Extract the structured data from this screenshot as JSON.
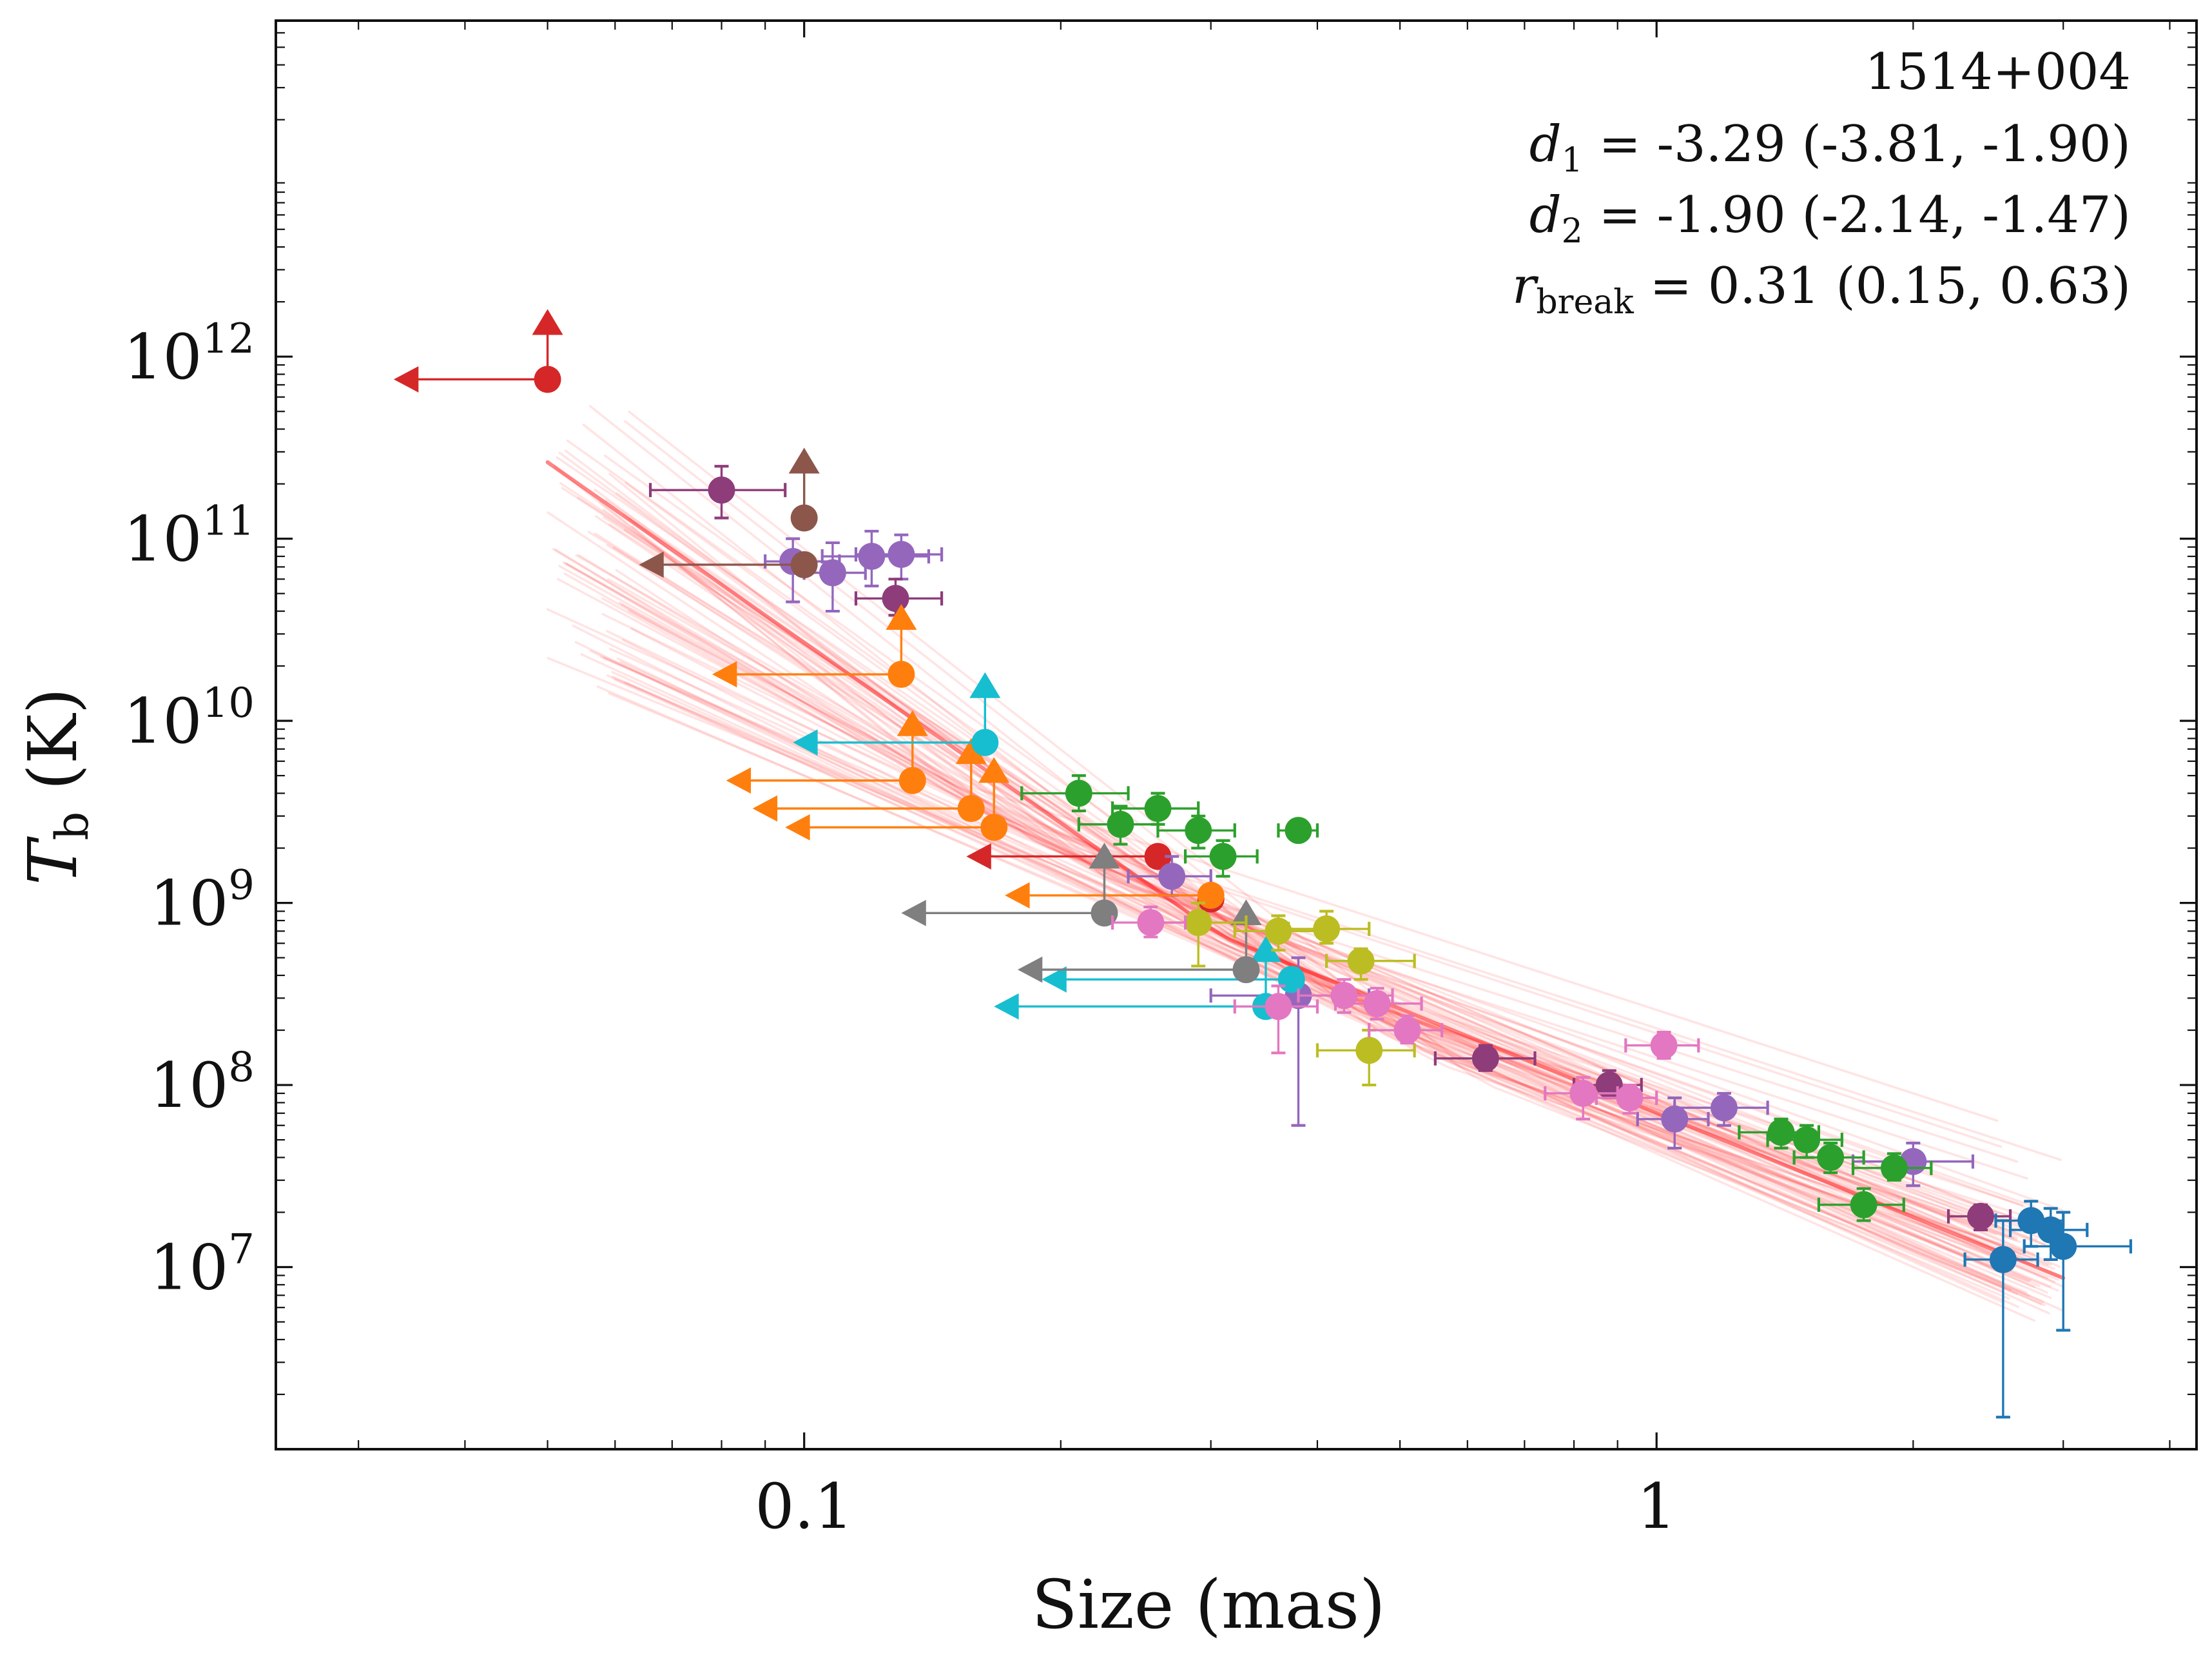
{
  "chart_data": {
    "type": "scatter",
    "title": "1514+004",
    "xlabel": "Size (mas)",
    "ylabel": "T_b (K)",
    "ylabel_main": "T",
    "ylabel_sub": "b",
    "ylabel_unit": " (K)",
    "xscale": "log",
    "yscale": "log",
    "xlim": [
      0.024,
      4.3
    ],
    "ylim": [
      1000000,
      70000000000000
    ],
    "x_ticks": [
      {
        "value": 0.1,
        "label": "0.1"
      },
      {
        "value": 1,
        "label": "1"
      }
    ],
    "y_ticks": [
      {
        "value": 10000000,
        "base": "10",
        "exp": "7"
      },
      {
        "value": 100000000,
        "base": "10",
        "exp": "8"
      },
      {
        "value": 1000000000,
        "base": "10",
        "exp": "9"
      },
      {
        "value": 10000000000,
        "base": "10",
        "exp": "10"
      },
      {
        "value": 100000000000,
        "base": "10",
        "exp": "11"
      },
      {
        "value": 1000000000000,
        "base": "10",
        "exp": "12"
      }
    ],
    "annotations": {
      "source": "1514+004",
      "d1_label": "d",
      "d1_sub": "1",
      "d1_value": " = -3.29 (-3.81, -1.90)",
      "d2_label": "d",
      "d2_sub": "2",
      "d2_value": " = -1.90 (-2.14, -1.47)",
      "rb_label": "r",
      "rb_sub": "break",
      "rb_value": " = 0.31 (0.15, 0.63)"
    },
    "fit": {
      "model": "broken power law",
      "d1": -3.29,
      "d1_interval": [
        -3.81,
        -1.9
      ],
      "d2": -1.9,
      "d2_interval": [
        -2.14,
        -1.47
      ],
      "r_break": 0.31,
      "r_break_interval": [
        0.15,
        0.63
      ],
      "x_range": [
        0.05,
        3.0
      ],
      "y_at_break": 650000000,
      "color": "#ff2020"
    },
    "series": [
      {
        "name": "red",
        "color": "#d62728",
        "points": [
          {
            "x": 0.05,
            "y": 750000000000,
            "upper": true,
            "lower": true,
            "xl": 0.033
          },
          {
            "x": 0.26,
            "y": 1800000000,
            "upper": true,
            "xl": 0.155
          },
          {
            "x": 0.3,
            "y": 1050000000
          }
        ]
      },
      {
        "name": "purple",
        "color": "#9467bd",
        "points": [
          {
            "x": 0.097,
            "y": 75000000000,
            "xe": [
              0.09,
              0.11
            ],
            "ye": [
              45000000000,
              100000000000
            ]
          },
          {
            "x": 0.108,
            "y": 65000000000,
            "xe": [
              0.1,
              0.118
            ],
            "ye": [
              40000000000,
              95000000000
            ]
          },
          {
            "x": 0.12,
            "y": 80000000000,
            "xe": [
              0.105,
              0.14
            ],
            "ye": [
              55000000000,
              110000000000
            ]
          },
          {
            "x": 0.13,
            "y": 82000000000,
            "xe": [
              0.115,
              0.145
            ],
            "ye": [
              60000000000,
              105000000000
            ]
          },
          {
            "x": 0.27,
            "y": 1400000000,
            "xe": [
              0.24,
              0.3
            ],
            "ye": [
              1100000000,
              1800000000
            ]
          },
          {
            "x": 0.38,
            "y": 310000000,
            "xe": [
              0.3,
              0.46
            ],
            "ye": [
              60000000,
              500000000
            ]
          },
          {
            "x": 1.05,
            "y": 65000000,
            "xe": [
              0.95,
              1.15
            ],
            "ye": [
              45000000,
              85000000
            ]
          },
          {
            "x": 1.2,
            "y": 75000000,
            "xe": [
              1.05,
              1.35
            ],
            "ye": [
              60000000,
              90000000
            ]
          },
          {
            "x": 2.0,
            "y": 38000000,
            "xe": [
              1.7,
              2.35
            ],
            "ye": [
              28000000,
              48000000
            ]
          }
        ]
      },
      {
        "name": "plum",
        "color": "#8e3c7a",
        "points": [
          {
            "x": 0.08,
            "y": 185000000000,
            "xe": [
              0.066,
              0.095
            ],
            "ye": [
              130000000000,
              250000000000
            ]
          },
          {
            "x": 0.128,
            "y": 47000000000,
            "xe": [
              0.115,
              0.145
            ],
            "ye": [
              38000000000,
              60000000000
            ]
          },
          {
            "x": 0.63,
            "y": 140000000,
            "xe": [
              0.55,
              0.72
            ],
            "ye": [
              120000000,
              165000000
            ]
          },
          {
            "x": 0.88,
            "y": 100000000,
            "xe": [
              0.8,
              0.96
            ],
            "ye": [
              85000000,
              120000000
            ]
          },
          {
            "x": 2.4,
            "y": 19000000,
            "xe": [
              2.2,
              2.6
            ],
            "ye": [
              16000000,
              22000000
            ]
          }
        ]
      },
      {
        "name": "brown",
        "color": "#8c564b",
        "points": [
          {
            "x": 0.1,
            "y": 72000000000,
            "upper": true,
            "xl": 0.064
          },
          {
            "x": 0.1,
            "y": 130000000000,
            "lower": true
          }
        ]
      },
      {
        "name": "orange",
        "color": "#ff7f0e",
        "points": [
          {
            "x": 0.13,
            "y": 18000000000,
            "upper": true,
            "lower": true,
            "xl": 0.078
          },
          {
            "x": 0.134,
            "y": 4700000000,
            "upper": true,
            "lower": true,
            "xl": 0.081
          },
          {
            "x": 0.157,
            "y": 3300000000,
            "upper": true,
            "lower": true,
            "xl": 0.087
          },
          {
            "x": 0.167,
            "y": 2600000000,
            "upper": true,
            "lower": true,
            "xl": 0.095
          },
          {
            "x": 0.3,
            "y": 1100000000,
            "upper": true,
            "xl": 0.172
          }
        ]
      },
      {
        "name": "cyan",
        "color": "#17becf",
        "points": [
          {
            "x": 0.163,
            "y": 7600000000,
            "upper": true,
            "lower": true,
            "xl": 0.097
          },
          {
            "x": 0.348,
            "y": 270000000,
            "upper": true,
            "lower": true,
            "xl": 0.167
          },
          {
            "x": 0.373,
            "y": 380000000,
            "upper": true,
            "xl": 0.19
          }
        ]
      },
      {
        "name": "gray",
        "color": "#7f7f7f",
        "points": [
          {
            "x": 0.225,
            "y": 880000000,
            "upper": true,
            "lower": true,
            "xl": 0.13
          },
          {
            "x": 0.33,
            "y": 430000000,
            "upper": true,
            "lower": true,
            "xl": 0.178
          }
        ]
      },
      {
        "name": "green",
        "color": "#2ca02c",
        "points": [
          {
            "x": 0.21,
            "y": 4000000000,
            "xe": [
              0.18,
              0.24
            ],
            "ye": [
              3200000000,
              5000000000
            ]
          },
          {
            "x": 0.235,
            "y": 2700000000,
            "xe": [
              0.21,
              0.26
            ],
            "ye": [
              2100000000,
              3400000000
            ]
          },
          {
            "x": 0.26,
            "y": 3300000000,
            "xe": [
              0.23,
              0.29
            ],
            "ye": [
              2700000000,
              4000000000
            ]
          },
          {
            "x": 0.29,
            "y": 2500000000,
            "xe": [
              0.26,
              0.32
            ],
            "ye": [
              2000000000,
              3000000000
            ]
          },
          {
            "x": 0.31,
            "y": 1800000000,
            "xe": [
              0.28,
              0.34
            ],
            "ye": [
              1400000000,
              2200000000
            ]
          },
          {
            "x": 0.38,
            "y": 2500000000,
            "xe": [
              0.36,
              0.4
            ],
            "ye": [
              2300000000,
              2700000000
            ]
          },
          {
            "x": 1.4,
            "y": 55000000,
            "xe": [
              1.25,
              1.55
            ],
            "ye": [
              45000000,
              65000000
            ]
          },
          {
            "x": 1.5,
            "y": 50000000,
            "xe": [
              1.35,
              1.65
            ],
            "ye": [
              40000000,
              60000000
            ]
          },
          {
            "x": 1.6,
            "y": 40000000,
            "xe": [
              1.45,
              1.75
            ],
            "ye": [
              33000000,
              48000000
            ]
          },
          {
            "x": 1.75,
            "y": 22000000,
            "xe": [
              1.55,
              1.95
            ],
            "ye": [
              18000000,
              27000000
            ]
          },
          {
            "x": 1.9,
            "y": 35000000,
            "xe": [
              1.7,
              2.1
            ],
            "ye": [
              30000000,
              42000000
            ]
          }
        ]
      },
      {
        "name": "olive",
        "color": "#bcbd22",
        "points": [
          {
            "x": 0.29,
            "y": 780000000,
            "xe": [
              0.26,
              0.33
            ],
            "ye": [
              450000000,
              1000000000
            ]
          },
          {
            "x": 0.36,
            "y": 700000000,
            "xe": [
              0.32,
              0.4
            ],
            "ye": [
              550000000,
              850000000
            ]
          },
          {
            "x": 0.41,
            "y": 720000000,
            "xe": [
              0.37,
              0.46
            ],
            "ye": [
              600000000,
              900000000
            ]
          },
          {
            "x": 0.45,
            "y": 480000000,
            "xe": [
              0.41,
              0.52
            ],
            "ye": [
              380000000,
              560000000
            ]
          },
          {
            "x": 0.46,
            "y": 155000000,
            "xe": [
              0.4,
              0.52
            ],
            "ye": [
              100000000,
              200000000
            ]
          }
        ]
      },
      {
        "name": "pink",
        "color": "#e377c2",
        "points": [
          {
            "x": 0.255,
            "y": 780000000,
            "xe": [
              0.23,
              0.28
            ],
            "ye": [
              650000000,
              950000000
            ]
          },
          {
            "x": 0.36,
            "y": 270000000,
            "xe": [
              0.32,
              0.4
            ],
            "ye": [
              150000000,
              350000000
            ]
          },
          {
            "x": 0.43,
            "y": 310000000,
            "xe": [
              0.38,
              0.49
            ],
            "ye": [
              250000000,
              380000000
            ]
          },
          {
            "x": 0.47,
            "y": 280000000,
            "xe": [
              0.42,
              0.53
            ],
            "ye": [
              230000000,
              340000000
            ]
          },
          {
            "x": 0.51,
            "y": 200000000,
            "xe": [
              0.46,
              0.56
            ],
            "ye": [
              170000000,
              240000000
            ]
          },
          {
            "x": 0.82,
            "y": 90000000,
            "xe": [
              0.74,
              0.9
            ],
            "ye": [
              65000000,
              110000000
            ]
          },
          {
            "x": 0.93,
            "y": 85000000,
            "xe": [
              0.85,
              1.0
            ],
            "ye": [
              70000000,
              100000000
            ]
          },
          {
            "x": 1.02,
            "y": 165000000,
            "xe": [
              0.92,
              1.12
            ],
            "ye": [
              140000000,
              195000000
            ]
          }
        ]
      },
      {
        "name": "blue",
        "color": "#1f77b4",
        "points": [
          {
            "x": 2.55,
            "y": 11000000,
            "xe": [
              2.3,
              2.8
            ],
            "ye": [
              1500000,
              18000000
            ]
          },
          {
            "x": 2.75,
            "y": 18000000,
            "xe": [
              2.5,
              3.0
            ],
            "ye": [
              13000000,
              23000000
            ]
          },
          {
            "x": 2.9,
            "y": 16000000,
            "xe": [
              2.6,
              3.2
            ],
            "ye": [
              11000000,
              21000000
            ]
          },
          {
            "x": 3.0,
            "y": 13000000,
            "xe": [
              2.7,
              3.6
            ],
            "ye": [
              4500000,
              20000000
            ]
          }
        ]
      }
    ]
  }
}
